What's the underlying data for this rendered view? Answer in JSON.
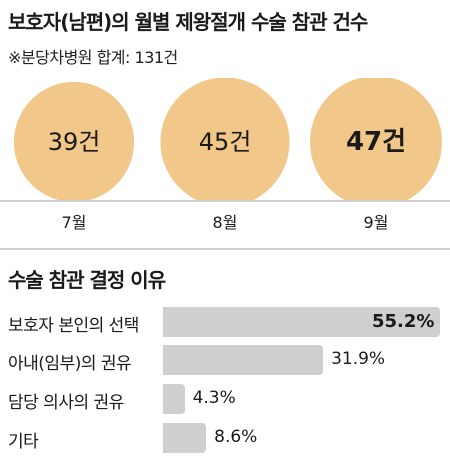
{
  "header": {
    "title": "보호자(남편)의 월별 제왕절개 수술 참관 건수",
    "subtitle": "※분당차병원 합계: 131건"
  },
  "colors": {
    "bubble": "#f2c88a",
    "bar": "#cfcfcf",
    "divider": "#cfcfcf"
  },
  "chart_data": [
    {
      "type": "bubble",
      "title": "보호자(남편)의 월별 제왕절개 수술 참관 건수",
      "subtitle": "※분당차병원 합계: 131건",
      "categories": [
        "7월",
        "8월",
        "9월"
      ],
      "values": [
        39,
        45,
        47
      ],
      "value_labels": [
        "39건",
        "45건",
        "47건"
      ],
      "highlight": "9월"
    },
    {
      "type": "bar",
      "title": "수술 참관 결정 이유",
      "categories": [
        "보호자 본인의 선택",
        "아내(임부)의 권유",
        "담당 의사의 권유",
        "기타"
      ],
      "values": [
        55.2,
        31.9,
        4.3,
        8.6
      ],
      "value_labels": [
        "55.2%",
        "31.9%",
        "4.3%",
        "8.6%"
      ],
      "unit": "%"
    }
  ]
}
